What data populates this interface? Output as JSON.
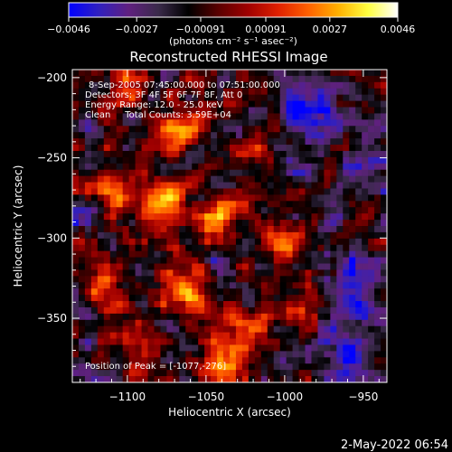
{
  "chart_data": {
    "type": "heatmap",
    "title": "Reconstructed RHESSI Image",
    "xlabel": "Heliocentric X (arcsec)",
    "ylabel": "Heliocentric Y (arcsec)",
    "xlim": [
      -1135,
      -935
    ],
    "ylim": [
      -390,
      -195
    ],
    "x_ticks": [
      {
        "value": -1100,
        "label": "−1100"
      },
      {
        "value": -1050,
        "label": "−1050"
      },
      {
        "value": -1000,
        "label": "−1000"
      },
      {
        "value": -950,
        "label": "−950"
      }
    ],
    "y_ticks": [
      {
        "value": -200,
        "label": "−200"
      },
      {
        "value": -250,
        "label": "−250"
      },
      {
        "value": -300,
        "label": "−300"
      },
      {
        "value": -350,
        "label": "−350"
      }
    ],
    "colorbar": {
      "range": [
        -0.0046,
        0.0046
      ],
      "ticks": [
        {
          "value": -0.0046,
          "label": "−0.0046"
        },
        {
          "value": -0.0027,
          "label": "−0.0027"
        },
        {
          "value": -0.00091,
          "label": "−0.00091"
        },
        {
          "value": 0.00091,
          "label": "0.00091"
        },
        {
          "value": 0.0027,
          "label": "0.0027"
        },
        {
          "value": 0.0046,
          "label": "0.0046"
        }
      ],
      "unit_label": "(photons cm⁻² s⁻¹ asec⁻²)",
      "colors": [
        "#0000ff",
        "#3020c0",
        "#602080",
        "#3a2a4a",
        "#000000",
        "#5a0000",
        "#a00000",
        "#e02000",
        "#ff6000",
        "#ffb000",
        "#ffff40",
        "#ffffff"
      ]
    },
    "annotations": [
      "8-Sep-2005 07:45:00.000 to 07:51:00.000",
      "Detectors: 3F 4F 5F 6F 7F 8F, Att 0",
      "Energy Range: 12.0 - 25.0 keV",
      "Clean     Total Counts: 3.59E+04"
    ],
    "peak_label": "Position of Peak = [-1077,-276]",
    "peak": {
      "x": -1077,
      "y": -276
    },
    "bright_sources": [
      {
        "x": -1095,
        "y": -205,
        "value": 0.003
      },
      {
        "x": -1070,
        "y": -230,
        "value": 0.004
      },
      {
        "x": -1077,
        "y": -276,
        "value": 0.0046
      },
      {
        "x": -1045,
        "y": -290,
        "value": 0.0042
      },
      {
        "x": -1060,
        "y": -330,
        "value": 0.004
      },
      {
        "x": -1030,
        "y": -355,
        "value": 0.0035
      },
      {
        "x": -1000,
        "y": -300,
        "value": 0.003
      },
      {
        "x": -990,
        "y": -345,
        "value": 0.003
      },
      {
        "x": -1115,
        "y": -330,
        "value": 0.0028
      },
      {
        "x": -1110,
        "y": -270,
        "value": 0.0025
      },
      {
        "x": -1040,
        "y": -380,
        "value": 0.0025
      },
      {
        "x": -1090,
        "y": -370,
        "value": 0.0022
      },
      {
        "x": -1020,
        "y": -250,
        "value": 0.002
      },
      {
        "x": -980,
        "y": -380,
        "value": 0.0018
      }
    ],
    "dim_regions": [
      {
        "x": -985,
        "y": -220,
        "value": -0.003
      },
      {
        "x": -955,
        "y": -330,
        "value": -0.003
      },
      {
        "x": -965,
        "y": -380,
        "value": -0.0035
      },
      {
        "x": -940,
        "y": -250,
        "value": -0.002
      },
      {
        "x": -1125,
        "y": -390,
        "value": -0.002
      }
    ]
  },
  "footer": {
    "date": "2-May-2022 06:54"
  }
}
